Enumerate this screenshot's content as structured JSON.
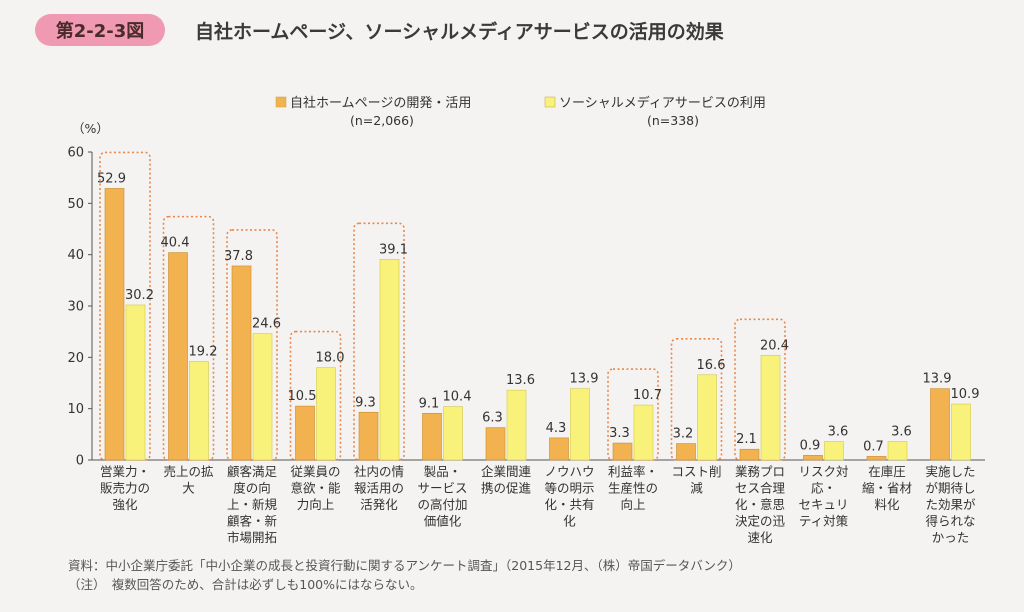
{
  "figure": {
    "number": "第2-2-3図",
    "title": "自社ホームページ、ソーシャルメディアサービスの活用の効果"
  },
  "notes": {
    "source": "資料：中小企業庁委託「中小企業の成長と投資行動に関するアンケート調査」（2015年12月、（株）帝国データバンク）",
    "note": "（注）　複数回答のため、合計は必ずしも100%にはならない。"
  },
  "chart_data": {
    "type": "bar",
    "title": "自社ホームページ、ソーシャルメディアサービスの活用の効果",
    "ylabel": "（%）",
    "ylim": [
      0,
      60
    ],
    "yticks": [
      0,
      10,
      20,
      30,
      40,
      50,
      60
    ],
    "grid": false,
    "legend_position": "top-center",
    "categories": [
      [
        "営業力・",
        "販売力の",
        "強化"
      ],
      [
        "売上の拡",
        "大"
      ],
      [
        "顧客満足",
        "度の向",
        "上・新規",
        "顧客・新",
        "市場開拓"
      ],
      [
        "従業員の",
        "意欲・能",
        "力向上"
      ],
      [
        "社内の情",
        "報活用の",
        "活発化"
      ],
      [
        "製品・",
        "サービス",
        "の高付加",
        "価値化"
      ],
      [
        "企業間連",
        "携の促進"
      ],
      [
        "ノウハウ",
        "等の明示",
        "化・共有",
        "化"
      ],
      [
        "利益率・",
        "生産性の",
        "向上"
      ],
      [
        "コスト削",
        "減"
      ],
      [
        "業務プロ",
        "セス合理",
        "化・意思",
        "決定の迅",
        "速化"
      ],
      [
        "リスク対",
        "応・",
        "セキュリ",
        "ティ対策"
      ],
      [
        "在庫圧",
        "縮・省材",
        "料化"
      ],
      [
        "実施した",
        "が期待し",
        "た効果が",
        "得られな",
        "かった"
      ]
    ],
    "series": [
      {
        "name": "自社ホームページの開発・活用",
        "n_label": "(n=2,066)",
        "color": "#f2b24f",
        "values": [
          52.9,
          40.4,
          37.8,
          10.5,
          9.3,
          9.1,
          6.3,
          4.3,
          3.3,
          3.2,
          2.1,
          0.9,
          0.7,
          13.9
        ]
      },
      {
        "name": "ソーシャルメディアサービスの利用",
        "n_label": "(n=338)",
        "color": "#f9f27a",
        "values": [
          30.2,
          19.2,
          24.6,
          18.0,
          39.1,
          10.4,
          13.6,
          13.9,
          10.7,
          16.6,
          20.4,
          3.6,
          3.6,
          10.9
        ]
      }
    ],
    "highlighted_indices": [
      0,
      1,
      2,
      3,
      4,
      8,
      9,
      10
    ],
    "highlight_color": "#e8884a"
  }
}
